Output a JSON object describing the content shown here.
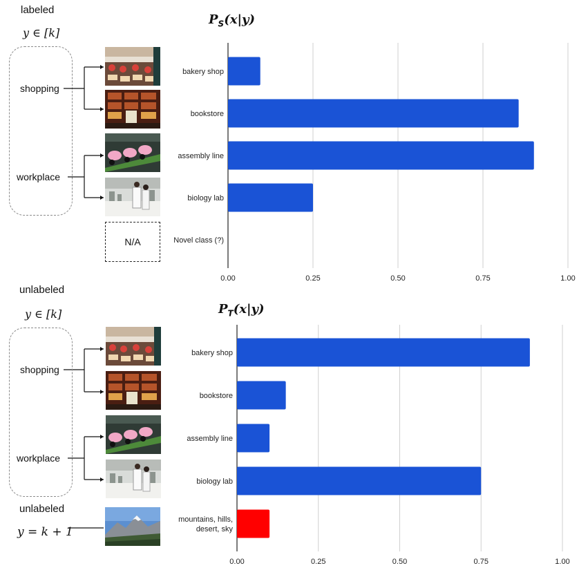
{
  "top": {
    "section_label": "labeled",
    "y_set": "y ∈ [k]",
    "groups": [
      "shopping",
      "workplace"
    ],
    "na_label": "N/A"
  },
  "bottom": {
    "section_label": "unlabeled",
    "y_set": "y ∈ [k]",
    "groups": [
      "shopping",
      "workplace"
    ],
    "novel_label": "unlabeled",
    "novel_eq": "y = k + 1"
  },
  "colors": {
    "bar": "#1a53d6",
    "novel_bar": "#ff0000",
    "grid": "#cfcfcf",
    "axis": "#222222"
  },
  "chart_data": [
    {
      "type": "bar",
      "orientation": "horizontal",
      "title": "P_S(x|y)",
      "categories": [
        "bakery shop",
        "bookstore",
        "assembly line",
        "biology lab",
        "Novel class (?)"
      ],
      "values": [
        0.095,
        0.855,
        0.9,
        0.25,
        0
      ],
      "xlim": [
        0,
        1
      ],
      "xticks": [
        "0.00",
        "0.25",
        "0.50",
        "0.75",
        "1.00"
      ],
      "grid": true
    },
    {
      "type": "bar",
      "orientation": "horizontal",
      "title": "P_T(x|y)",
      "categories": [
        "bakery shop",
        "bookstore",
        "assembly line",
        "biology lab",
        "mountains, hills, desert, sky"
      ],
      "values": [
        0.9,
        0.15,
        0.1,
        0.75,
        0.1
      ],
      "highlight_index": 4,
      "xlim": [
        0,
        1
      ],
      "xticks": [
        "0.00",
        "0.25",
        "0.50",
        "0.75",
        "1.00"
      ],
      "grid": true
    }
  ]
}
